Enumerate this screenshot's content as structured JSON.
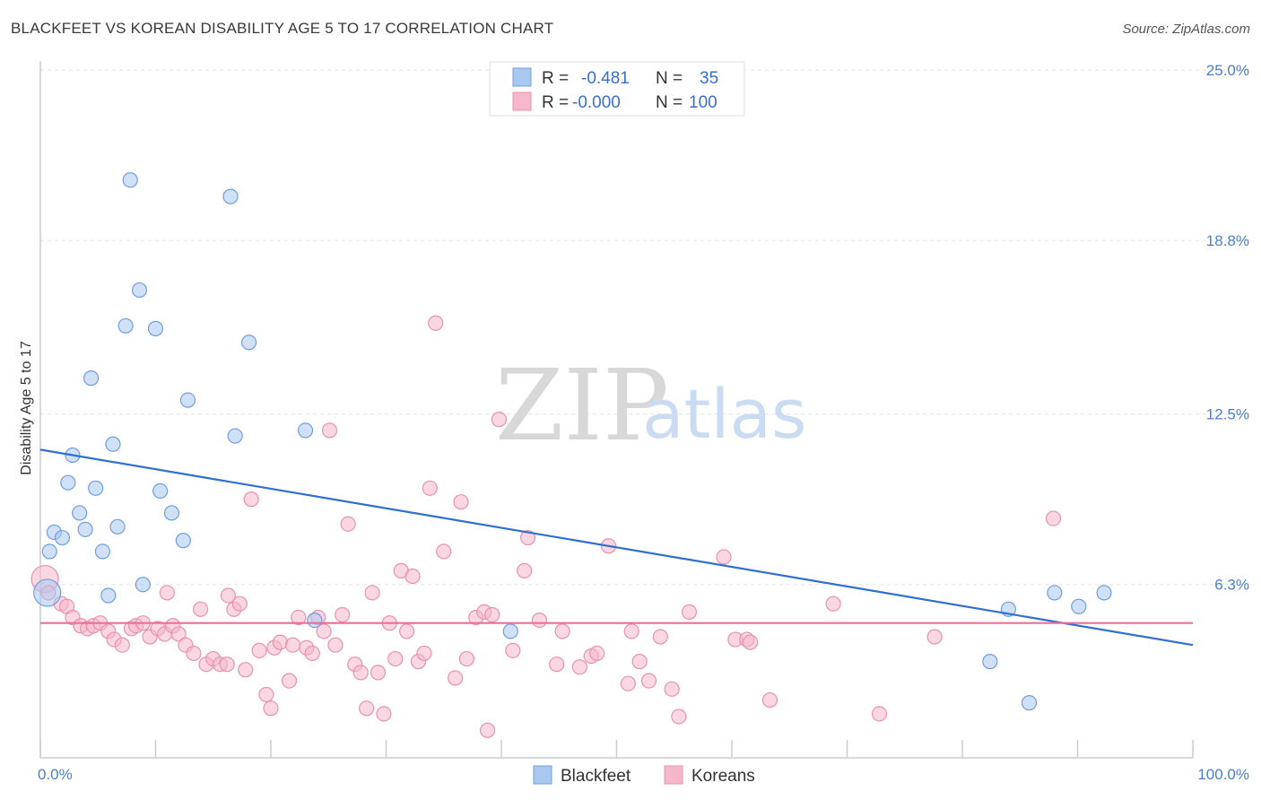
{
  "header": {
    "title": "BLACKFEET VS KOREAN DISABILITY AGE 5 TO 17 CORRELATION CHART",
    "source": "Source: ZipAtlas.com"
  },
  "watermark": {
    "zip": "ZIP",
    "atlas": "atlas"
  },
  "legend": {
    "rows": [
      {
        "r_label": "R =",
        "r_value": "-0.481",
        "n_label": "N =",
        "n_value": "35",
        "color": "#a9c8f0"
      },
      {
        "r_label": "R =",
        "r_value": "-0.000",
        "n_label": "N =",
        "n_value": "100",
        "color": "#f6b7cb"
      }
    ]
  },
  "chart_data": {
    "type": "scatter",
    "title": "BLACKFEET VS KOREAN DISABILITY AGE 5 TO 17 CORRELATION CHART",
    "xlabel": "",
    "ylabel": "Disability Age 5 to 17",
    "xlim": [
      0,
      100
    ],
    "ylim": [
      0,
      25.0
    ],
    "x_tick_labels": [
      "0.0%",
      "100.0%"
    ],
    "y_ticks": [
      6.3,
      12.5,
      18.8,
      25.0
    ],
    "y_tick_labels": [
      "6.3%",
      "12.5%",
      "18.8%",
      "25.0%"
    ],
    "grid": "horizontal dashed",
    "legend_placement": "top-center",
    "series": [
      {
        "name": "Blackfeet",
        "color": "#a9c8f0",
        "stroke": "#6f9fdc",
        "line_color": "#2f6fcf",
        "trend": {
          "x": [
            0,
            100
          ],
          "y": [
            11.2,
            4.1
          ]
        },
        "points": [
          [
            7.8,
            21.0
          ],
          [
            16.5,
            20.4
          ],
          [
            8.6,
            17.0
          ],
          [
            7.4,
            15.7
          ],
          [
            10.0,
            15.6
          ],
          [
            18.1,
            15.1
          ],
          [
            4.4,
            13.8
          ],
          [
            12.8,
            13.0
          ],
          [
            6.3,
            11.4
          ],
          [
            16.9,
            11.7
          ],
          [
            23.0,
            11.9
          ],
          [
            2.8,
            11.0
          ],
          [
            2.4,
            10.0
          ],
          [
            4.8,
            9.8
          ],
          [
            10.4,
            9.7
          ],
          [
            3.4,
            8.9
          ],
          [
            11.4,
            8.9
          ],
          [
            6.7,
            8.4
          ],
          [
            1.2,
            8.2
          ],
          [
            1.9,
            8.0
          ],
          [
            3.9,
            8.3
          ],
          [
            12.4,
            7.9
          ],
          [
            0.8,
            7.5
          ],
          [
            5.4,
            7.5
          ],
          [
            0.6,
            6.0
          ],
          [
            8.9,
            6.3
          ],
          [
            5.9,
            5.9
          ],
          [
            23.8,
            5.0
          ],
          [
            40.8,
            4.6
          ],
          [
            84.0,
            5.4
          ],
          [
            88.0,
            6.0
          ],
          [
            90.1,
            5.5
          ],
          [
            92.3,
            6.0
          ],
          [
            82.4,
            3.5
          ],
          [
            85.8,
            2.0
          ]
        ]
      },
      {
        "name": "Koreans",
        "color": "#f6b7cb",
        "stroke": "#e892ae",
        "line_color": "#e8709a",
        "trend": {
          "x": [
            0,
            100
          ],
          "y": [
            4.9,
            4.9
          ]
        },
        "points": [
          [
            0.4,
            6.5
          ],
          [
            0.7,
            6.0
          ],
          [
            1.8,
            5.6
          ],
          [
            2.3,
            5.5
          ],
          [
            2.8,
            5.1
          ],
          [
            3.5,
            4.8
          ],
          [
            4.1,
            4.7
          ],
          [
            4.6,
            4.8
          ],
          [
            5.2,
            4.9
          ],
          [
            5.9,
            4.6
          ],
          [
            6.4,
            4.3
          ],
          [
            7.1,
            4.1
          ],
          [
            7.9,
            4.7
          ],
          [
            8.3,
            4.8
          ],
          [
            8.9,
            4.9
          ],
          [
            9.5,
            4.4
          ],
          [
            10.2,
            4.7
          ],
          [
            10.8,
            4.5
          ],
          [
            11.5,
            4.8
          ],
          [
            12.0,
            4.5
          ],
          [
            11.0,
            6.0
          ],
          [
            12.6,
            4.1
          ],
          [
            13.3,
            3.8
          ],
          [
            13.9,
            5.4
          ],
          [
            14.4,
            3.4
          ],
          [
            15.0,
            3.6
          ],
          [
            15.6,
            3.4
          ],
          [
            16.2,
            3.4
          ],
          [
            16.3,
            5.9
          ],
          [
            16.8,
            5.4
          ],
          [
            17.3,
            5.6
          ],
          [
            17.8,
            3.2
          ],
          [
            18.3,
            9.4
          ],
          [
            19.0,
            3.9
          ],
          [
            19.6,
            2.3
          ],
          [
            20.0,
            1.8
          ],
          [
            20.3,
            4.0
          ],
          [
            20.8,
            4.2
          ],
          [
            21.6,
            2.8
          ],
          [
            21.9,
            4.1
          ],
          [
            22.4,
            5.1
          ],
          [
            23.1,
            4.0
          ],
          [
            23.6,
            3.8
          ],
          [
            24.1,
            5.1
          ],
          [
            24.6,
            4.6
          ],
          [
            25.1,
            11.9
          ],
          [
            25.6,
            4.1
          ],
          [
            26.2,
            5.2
          ],
          [
            26.7,
            8.5
          ],
          [
            27.3,
            3.4
          ],
          [
            27.8,
            3.1
          ],
          [
            28.3,
            1.8
          ],
          [
            28.8,
            6.0
          ],
          [
            29.3,
            3.1
          ],
          [
            29.8,
            1.6
          ],
          [
            30.3,
            4.9
          ],
          [
            30.8,
            3.6
          ],
          [
            31.3,
            6.8
          ],
          [
            31.8,
            4.6
          ],
          [
            32.3,
            6.6
          ],
          [
            32.8,
            3.5
          ],
          [
            33.3,
            3.8
          ],
          [
            33.8,
            9.8
          ],
          [
            34.3,
            15.8
          ],
          [
            35.0,
            7.5
          ],
          [
            36.0,
            2.9
          ],
          [
            36.5,
            9.3
          ],
          [
            37.0,
            3.6
          ],
          [
            37.8,
            5.1
          ],
          [
            38.5,
            5.3
          ],
          [
            38.8,
            1.0
          ],
          [
            39.2,
            5.2
          ],
          [
            39.8,
            12.3
          ],
          [
            41.0,
            3.9
          ],
          [
            42.0,
            6.8
          ],
          [
            42.3,
            8.0
          ],
          [
            43.3,
            5.0
          ],
          [
            45.3,
            4.6
          ],
          [
            46.8,
            3.3
          ],
          [
            47.8,
            3.7
          ],
          [
            48.3,
            3.8
          ],
          [
            49.3,
            7.7
          ],
          [
            51.0,
            2.7
          ],
          [
            51.3,
            4.6
          ],
          [
            52.0,
            3.5
          ],
          [
            52.8,
            2.8
          ],
          [
            53.8,
            4.4
          ],
          [
            54.8,
            2.5
          ],
          [
            55.4,
            1.5
          ],
          [
            56.3,
            5.3
          ],
          [
            59.3,
            7.3
          ],
          [
            60.3,
            4.3
          ],
          [
            61.3,
            4.3
          ],
          [
            63.3,
            2.1
          ],
          [
            68.8,
            5.6
          ],
          [
            72.8,
            1.6
          ],
          [
            77.6,
            4.4
          ],
          [
            87.9,
            8.7
          ],
          [
            61.6,
            4.2
          ],
          [
            44.8,
            3.4
          ]
        ]
      }
    ]
  }
}
